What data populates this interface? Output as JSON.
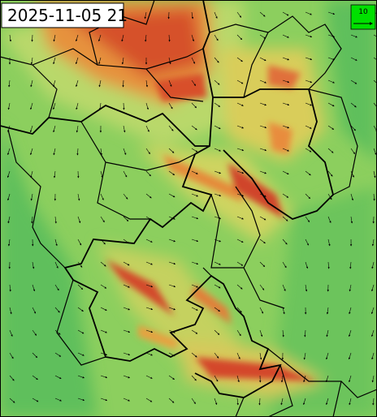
{
  "timestamp": "2025-11-05 21",
  "legend": {
    "label": "10"
  }
}
